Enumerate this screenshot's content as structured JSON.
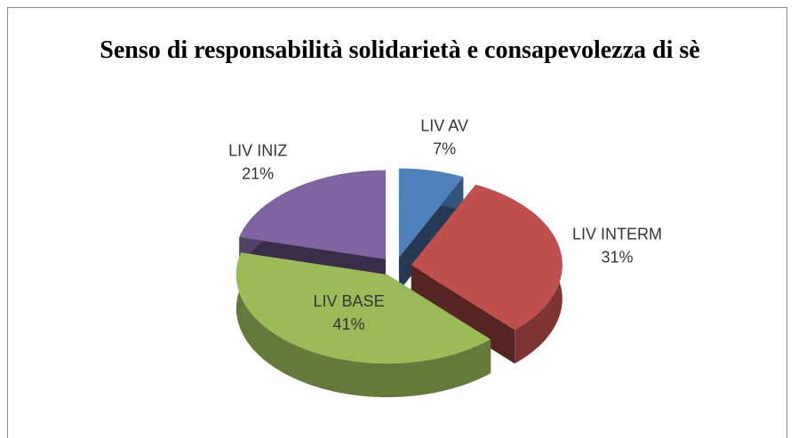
{
  "chart_data": {
    "type": "pie",
    "title": "Senso di responsabilità solidarietà e consapevolezza di sè",
    "categories": [
      "LIV AV",
      "LIV INTERM",
      "LIV BASE",
      "LIV INIZ"
    ],
    "values": [
      7,
      31,
      41,
      21
    ],
    "value_labels": [
      "7%",
      "31%",
      "41%",
      "21%"
    ],
    "colors": [
      "#4f81bd",
      "#c0504d",
      "#9bbb59",
      "#8064a2"
    ]
  }
}
